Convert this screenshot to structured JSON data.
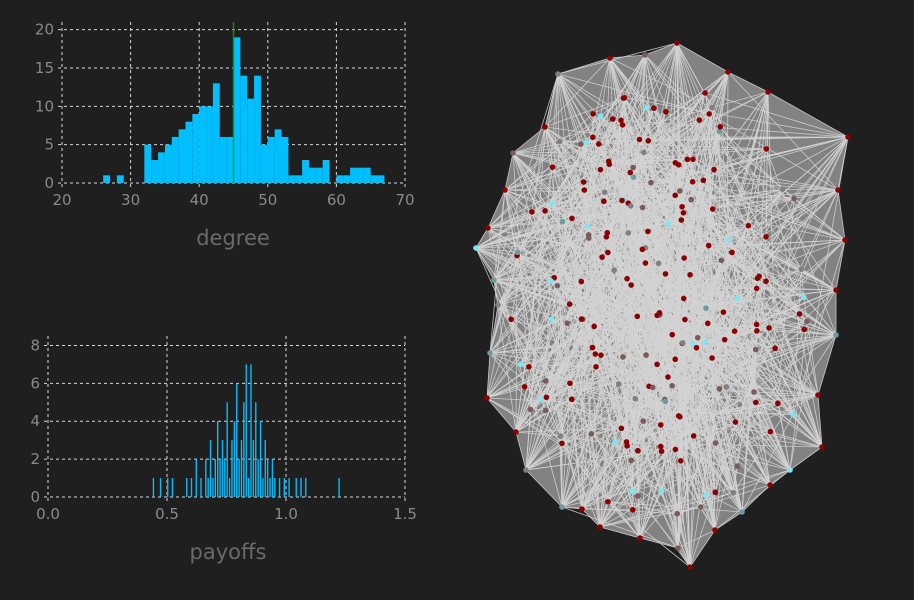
{
  "colors": {
    "background": "#1f1f1f",
    "bar": "#00bfff",
    "marker_line": "#00a000",
    "hull_fill": "#d3d3d3",
    "edge": "#d3d3d3"
  },
  "chart_data": [
    {
      "type": "bar",
      "xlabel": "degree",
      "xlim": [
        20,
        70
      ],
      "ylim": [
        0,
        21
      ],
      "xticks": [
        "20",
        "30",
        "40",
        "50",
        "60",
        "70"
      ],
      "yticks": [
        "0",
        "5",
        "10",
        "15",
        "20"
      ],
      "grid": true,
      "bin_width": 1,
      "reference_line_x": 45,
      "bins": [
        [
          26,
          1
        ],
        [
          28,
          1
        ],
        [
          32,
          5
        ],
        [
          33,
          3
        ],
        [
          34,
          4
        ],
        [
          35,
          5
        ],
        [
          36,
          6
        ],
        [
          37,
          7
        ],
        [
          38,
          8
        ],
        [
          39,
          9
        ],
        [
          40,
          10
        ],
        [
          41,
          10
        ],
        [
          42,
          13
        ],
        [
          43,
          6
        ],
        [
          44,
          6
        ],
        [
          45,
          19
        ],
        [
          46,
          14
        ],
        [
          47,
          11
        ],
        [
          48,
          14
        ],
        [
          49,
          5
        ],
        [
          50,
          6
        ],
        [
          51,
          7
        ],
        [
          52,
          6
        ],
        [
          53,
          1
        ],
        [
          54,
          1
        ],
        [
          55,
          3
        ],
        [
          56,
          2
        ],
        [
          57,
          2
        ],
        [
          58,
          3
        ],
        [
          59,
          0
        ],
        [
          60,
          1
        ],
        [
          61,
          1
        ],
        [
          62,
          2
        ],
        [
          63,
          2
        ],
        [
          64,
          2
        ],
        [
          65,
          1
        ],
        [
          66,
          1
        ]
      ]
    },
    {
      "type": "bar",
      "xlabel": "payoffs",
      "xlim": [
        0,
        1.5
      ],
      "ylim": [
        0,
        8.5
      ],
      "xticks": [
        "0.0",
        "0.5",
        "1.0",
        "1.5"
      ],
      "yticks": [
        "0",
        "2",
        "4",
        "6",
        "8"
      ],
      "grid": true,
      "bin_width": 0.005,
      "bins": [
        [
          0.44,
          1
        ],
        [
          0.47,
          1
        ],
        [
          0.5,
          1
        ],
        [
          0.52,
          1
        ],
        [
          0.58,
          1
        ],
        [
          0.6,
          1
        ],
        [
          0.62,
          2
        ],
        [
          0.64,
          1
        ],
        [
          0.66,
          2
        ],
        [
          0.67,
          1
        ],
        [
          0.68,
          3
        ],
        [
          0.69,
          1
        ],
        [
          0.7,
          2
        ],
        [
          0.71,
          4
        ],
        [
          0.72,
          2
        ],
        [
          0.73,
          3
        ],
        [
          0.74,
          2
        ],
        [
          0.75,
          5
        ],
        [
          0.76,
          1
        ],
        [
          0.77,
          3
        ],
        [
          0.78,
          4
        ],
        [
          0.79,
          6
        ],
        [
          0.8,
          2
        ],
        [
          0.81,
          3
        ],
        [
          0.82,
          5
        ],
        [
          0.83,
          7
        ],
        [
          0.84,
          1
        ],
        [
          0.85,
          7
        ],
        [
          0.86,
          3
        ],
        [
          0.87,
          5
        ],
        [
          0.88,
          2
        ],
        [
          0.89,
          4
        ],
        [
          0.9,
          1
        ],
        [
          0.91,
          3
        ],
        [
          0.92,
          2
        ],
        [
          0.93,
          1
        ],
        [
          0.94,
          2
        ],
        [
          0.95,
          1
        ],
        [
          0.97,
          1
        ],
        [
          0.99,
          1
        ],
        [
          1.01,
          1
        ],
        [
          1.04,
          1
        ],
        [
          1.06,
          1
        ],
        [
          1.08,
          1
        ],
        [
          1.22,
          1
        ]
      ]
    },
    {
      "type": "scatter",
      "subtype": "network graph",
      "node_colors": [
        "#8b0000",
        "#7a5a5a",
        "#808080",
        "#6e9aa0",
        "#7fe5f0"
      ],
      "node_count_approx": 230
    }
  ]
}
